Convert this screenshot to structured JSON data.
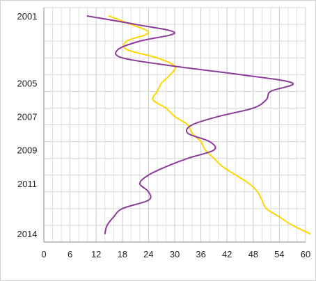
{
  "chart_data": {
    "type": "line",
    "orientation": "horizontal-time",
    "title": "",
    "xlabel": "",
    "ylabel": "",
    "xlim": [
      0,
      60
    ],
    "x_ticks": [
      0,
      6,
      12,
      18,
      24,
      30,
      36,
      42,
      48,
      54,
      60
    ],
    "x_tick_labels": [
      "0",
      "6",
      "12",
      "18",
      "24",
      "30",
      "36",
      "42",
      "48",
      "54",
      "60"
    ],
    "y_tick_labels": [
      "2001",
      "2005",
      "2007",
      "2009",
      "2011",
      "2014"
    ],
    "grid": true,
    "legend": "none",
    "series": [
      {
        "color": "#FFD700",
        "points": [
          {
            "year": 2001.0,
            "value": 15
          },
          {
            "year": 2001.5,
            "value": 20
          },
          {
            "year": 2002.0,
            "value": 24
          },
          {
            "year": 2002.5,
            "value": 19
          },
          {
            "year": 2003.0,
            "value": 19
          },
          {
            "year": 2003.5,
            "value": 26
          },
          {
            "year": 2004.0,
            "value": 30
          },
          {
            "year": 2004.5,
            "value": 29
          },
          {
            "year": 2005.0,
            "value": 27
          },
          {
            "year": 2005.5,
            "value": 26
          },
          {
            "year": 2006.0,
            "value": 25
          },
          {
            "year": 2006.5,
            "value": 28
          },
          {
            "year": 2007.0,
            "value": 30
          },
          {
            "year": 2007.5,
            "value": 33
          },
          {
            "year": 2008.0,
            "value": 34
          },
          {
            "year": 2008.5,
            "value": 36
          },
          {
            "year": 2009.0,
            "value": 37
          },
          {
            "year": 2009.5,
            "value": 39
          },
          {
            "year": 2010.0,
            "value": 41
          },
          {
            "year": 2010.5,
            "value": 44
          },
          {
            "year": 2011.0,
            "value": 47
          },
          {
            "year": 2011.5,
            "value": 49
          },
          {
            "year": 2012.0,
            "value": 50
          },
          {
            "year": 2012.5,
            "value": 51
          },
          {
            "year": 2013.0,
            "value": 54
          },
          {
            "year": 2013.5,
            "value": 57
          },
          {
            "year": 2014.0,
            "value": 61
          }
        ]
      },
      {
        "color": "#8B3A9A",
        "points": [
          {
            "year": 2001.0,
            "value": 10
          },
          {
            "year": 2001.5,
            "value": 21
          },
          {
            "year": 2002.0,
            "value": 30
          },
          {
            "year": 2002.5,
            "value": 22
          },
          {
            "year": 2003.0,
            "value": 17
          },
          {
            "year": 2003.5,
            "value": 18
          },
          {
            "year": 2004.0,
            "value": 30
          },
          {
            "year": 2004.5,
            "value": 45
          },
          {
            "year": 2005.0,
            "value": 57
          },
          {
            "year": 2005.5,
            "value": 52
          },
          {
            "year": 2006.0,
            "value": 51
          },
          {
            "year": 2006.5,
            "value": 48
          },
          {
            "year": 2007.0,
            "value": 40
          },
          {
            "year": 2007.5,
            "value": 34
          },
          {
            "year": 2008.0,
            "value": 33
          },
          {
            "year": 2008.5,
            "value": 38
          },
          {
            "year": 2009.0,
            "value": 39
          },
          {
            "year": 2009.5,
            "value": 33
          },
          {
            "year": 2010.0,
            "value": 28
          },
          {
            "year": 2010.5,
            "value": 24
          },
          {
            "year": 2011.0,
            "value": 22
          },
          {
            "year": 2011.5,
            "value": 24
          },
          {
            "year": 2012.0,
            "value": 24
          },
          {
            "year": 2012.5,
            "value": 18
          },
          {
            "year": 2013.0,
            "value": 16
          },
          {
            "year": 2013.5,
            "value": 14.5
          },
          {
            "year": 2014.0,
            "value": 14
          }
        ]
      }
    ]
  }
}
